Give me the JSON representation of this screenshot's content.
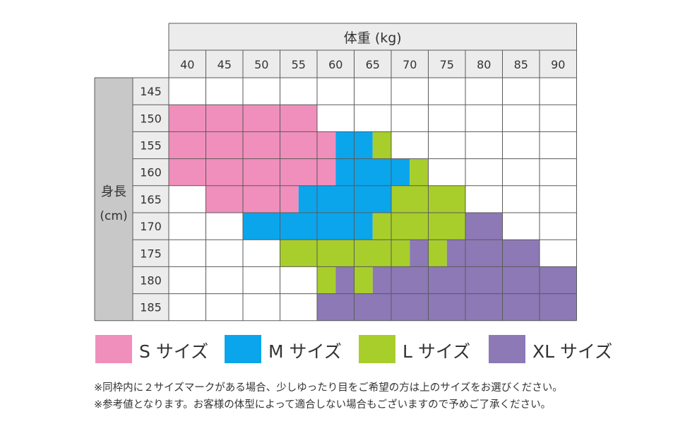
{
  "chart_data": {
    "type": "heatmap",
    "title": "",
    "xlabel": "体重 (kg)",
    "ylabel_line1": "身長",
    "ylabel_line2": "(cm)",
    "x_ticks": [
      "40",
      "45",
      "50",
      "55",
      "60",
      "65",
      "70",
      "75",
      "80",
      "85",
      "90"
    ],
    "y_ticks": [
      "145",
      "150",
      "155",
      "160",
      "165",
      "170",
      "175",
      "180",
      "185"
    ],
    "categories": {
      "S": {
        "label": "S サイズ",
        "color": "#f08fbc"
      },
      "M": {
        "label": "M サイズ",
        "color": "#0ba5ec"
      },
      "L": {
        "label": "L サイズ",
        "color": "#a8ce2b"
      },
      "XL": {
        "label": "XL サイズ",
        "color": "#8c79b6"
      }
    },
    "cells": [
      [
        "",
        "",
        "",
        "",
        "",
        "",
        "",
        "",
        "",
        "",
        ""
      ],
      [
        "S",
        "S",
        "S",
        "S",
        "",
        "",
        "",
        "",
        "",
        "",
        ""
      ],
      [
        "S",
        "S",
        "S",
        "S",
        "S|M",
        "M|L",
        "",
        "",
        "",
        "",
        ""
      ],
      [
        "S",
        "S",
        "S",
        "S",
        "S|M",
        "M",
        "M|L",
        "",
        "",
        "",
        ""
      ],
      [
        "",
        "S",
        "S",
        "S|M",
        "M",
        "M",
        "L",
        "L",
        "",
        "",
        ""
      ],
      [
        "",
        "",
        "M",
        "M",
        "M",
        "M|L",
        "L",
        "L",
        "XL",
        "",
        ""
      ],
      [
        "",
        "",
        "",
        "L",
        "L",
        "L",
        "L|XL",
        "L|XL",
        "XL",
        "XL",
        ""
      ],
      [
        "",
        "",
        "",
        "",
        "L|XL",
        "L|XL",
        "XL",
        "XL",
        "XL",
        "XL",
        "XL"
      ],
      [
        "",
        "",
        "",
        "",
        "XL",
        "XL",
        "XL",
        "XL",
        "XL",
        "XL",
        "XL"
      ]
    ]
  },
  "legend": [
    {
      "key": "S",
      "label": "S サイズ",
      "color": "#f08fbc"
    },
    {
      "key": "M",
      "label": "M サイズ",
      "color": "#0ba5ec"
    },
    {
      "key": "L",
      "label": "L サイズ",
      "color": "#a8ce2b"
    },
    {
      "key": "XL",
      "label": "XL サイズ",
      "color": "#8c79b6"
    }
  ],
  "notes": [
    "※同枠内に２サイズマークがある場合、少しゆったり目をご希望の方は上のサイズをお選びください。",
    "※参考値となります。お客様の体型によって適合しない場合もございますので予めご了承ください。"
  ],
  "colors": {
    "header_bg": "#ececec",
    "row_header_bg": "#ececec",
    "ylabel_bg": "#c8c8c8",
    "grid": "#5a5a5a",
    "text": "#333333"
  }
}
